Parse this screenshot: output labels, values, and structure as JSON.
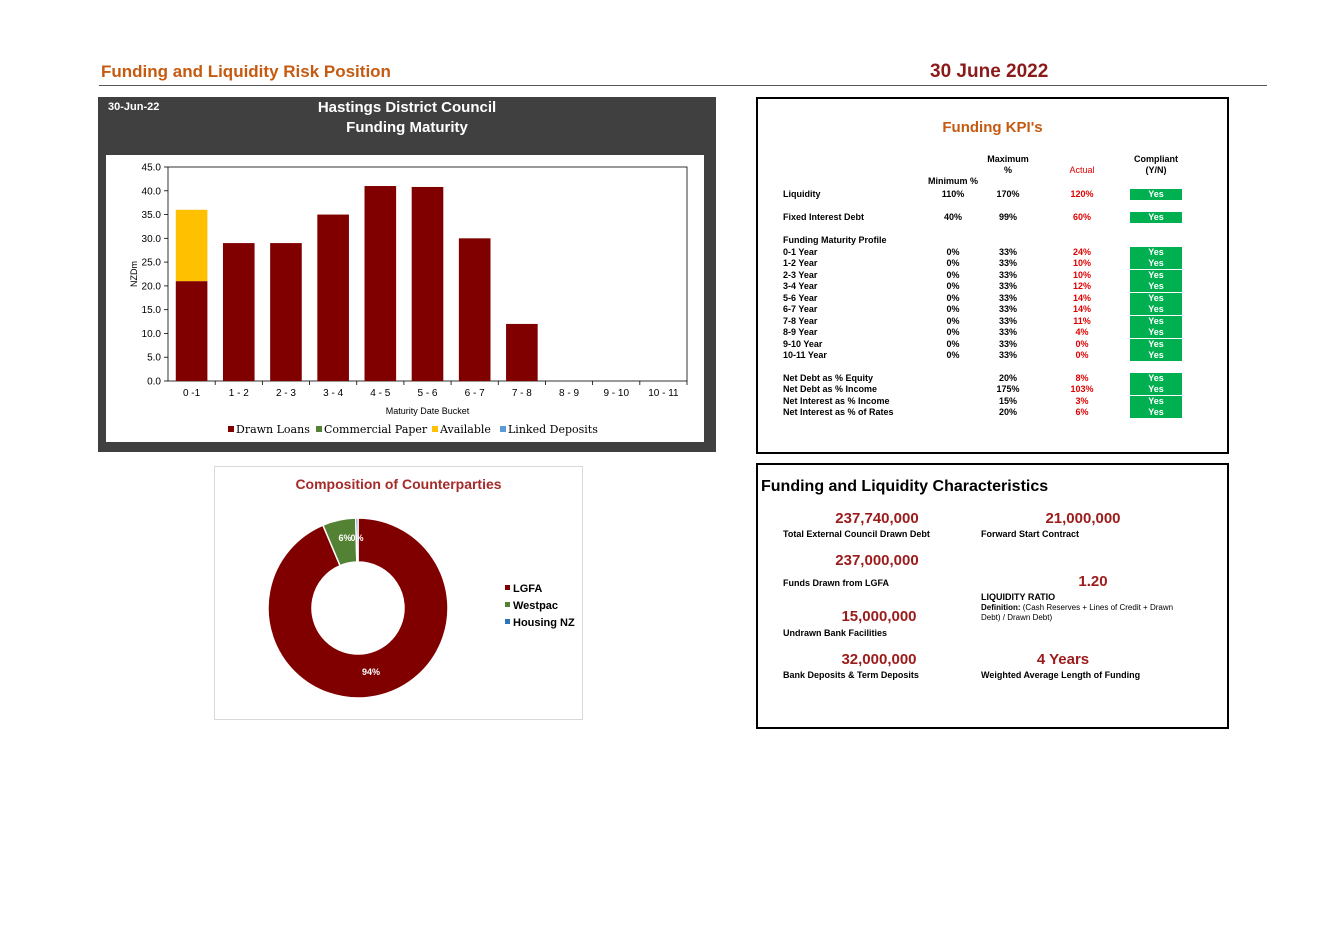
{
  "header": {
    "title": "Funding and Liquidity Risk Position",
    "date": "30 June 2022"
  },
  "bar_panel": {
    "date": "30-Jun-22",
    "title_line1": "Hastings District Council",
    "title_line2": "Funding Maturity"
  },
  "chart_data": [
    {
      "type": "bar",
      "stacked": true,
      "xlabel": "Maturity Date Bucket",
      "ylabel": "NZDm",
      "ylim": [
        0,
        45
      ],
      "yticks": [
        "0.0",
        "5.0",
        "10.0",
        "15.0",
        "20.0",
        "25.0",
        "30.0",
        "35.0",
        "40.0",
        "45.0"
      ],
      "categories": [
        "0 -1",
        "1 - 2",
        "2 - 3",
        "3 - 4",
        "4 - 5",
        "5 - 6",
        "6 - 7",
        "7 - 8",
        "8 - 9",
        "9 - 10",
        "10 - 11"
      ],
      "series": [
        {
          "name": "Drawn Loans",
          "color": "#800000",
          "values": [
            21,
            29,
            29,
            35,
            41,
            40.8,
            30,
            12,
            0,
            0,
            0
          ]
        },
        {
          "name": "Commercial Paper",
          "color": "#548235",
          "values": [
            0,
            0,
            0,
            0,
            0,
            0,
            0,
            0,
            0,
            0,
            0
          ]
        },
        {
          "name": "Available",
          "color": "#ffc000",
          "values": [
            15,
            0,
            0,
            0,
            0,
            0,
            0,
            0,
            0,
            0,
            0
          ]
        },
        {
          "name": "Linked Deposits",
          "color": "#5b9bd5",
          "values": [
            0,
            0,
            0,
            0,
            0,
            0,
            0,
            0,
            0,
            0,
            0
          ]
        }
      ],
      "legend": "bottom",
      "grid": false
    },
    {
      "type": "pie",
      "donut": true,
      "title": "Composition of Counterparties",
      "labels": [
        "LGFA",
        "Westpac",
        "Housing NZ"
      ],
      "values": [
        94,
        6,
        0.4
      ],
      "data_labels": [
        "94%",
        "6%",
        "0%"
      ],
      "colors": [
        "#800000",
        "#548235",
        "#2e75b6"
      ],
      "legend": "right"
    }
  ],
  "kpi": {
    "title": "Funding KPI's",
    "headers": {
      "min": "Minimum %",
      "max_line1": "Maximum",
      "max_line2": "%",
      "actual": "Actual",
      "comp_line1": "Compliant",
      "comp_line2": "(Y/N)"
    },
    "rows": [
      {
        "label": "Liquidity",
        "min": "110%",
        "max": "170%",
        "actual": "120%",
        "compliant": "Yes"
      },
      {
        "label": "Fixed Interest Debt",
        "min": "40%",
        "max": "99%",
        "actual": "60%",
        "compliant": "Yes"
      }
    ],
    "profile_title": "Funding Maturity Profile",
    "profile": [
      {
        "label": "0-1 Year",
        "min": "0%",
        "max": "33%",
        "actual": "24%",
        "compliant": "Yes"
      },
      {
        "label": "1-2 Year",
        "min": "0%",
        "max": "33%",
        "actual": "10%",
        "compliant": "Yes"
      },
      {
        "label": "2-3 Year",
        "min": "0%",
        "max": "33%",
        "actual": "10%",
        "compliant": "Yes"
      },
      {
        "label": "3-4 Year",
        "min": "0%",
        "max": "33%",
        "actual": "12%",
        "compliant": "Yes"
      },
      {
        "label": "5-6 Year",
        "min": "0%",
        "max": "33%",
        "actual": "14%",
        "compliant": "Yes"
      },
      {
        "label": "6-7 Year",
        "min": "0%",
        "max": "33%",
        "actual": "14%",
        "compliant": "Yes"
      },
      {
        "label": "7-8 Year",
        "min": "0%",
        "max": "33%",
        "actual": "11%",
        "compliant": "Yes"
      },
      {
        "label": "8-9 Year",
        "min": "0%",
        "max": "33%",
        "actual": "4%",
        "compliant": "Yes"
      },
      {
        "label": "9-10 Year",
        "min": "0%",
        "max": "33%",
        "actual": "0%",
        "compliant": "Yes"
      },
      {
        "label": "10-11 Year",
        "min": "0%",
        "max": "33%",
        "actual": "0%",
        "compliant": "Yes"
      }
    ],
    "debt": [
      {
        "label": "Net Debt as % Equity",
        "max": "20%",
        "actual": "8%",
        "compliant": "Yes"
      },
      {
        "label": "Net Debt as % Income",
        "max": "175%",
        "actual": "103%",
        "compliant": "Yes"
      },
      {
        "label": "Net Interest as % Income",
        "max": "15%",
        "actual": "3%",
        "compliant": "Yes"
      },
      {
        "label": "Net Interest as % of Rates",
        "max": "20%",
        "actual": "6%",
        "compliant": "Yes"
      }
    ]
  },
  "characteristics": {
    "title": "Funding and Liquidity Characteristics",
    "total_debt": {
      "value": "237,740,000",
      "label": "Total External Council Drawn Debt"
    },
    "lgfa": {
      "value": "237,000,000",
      "label": "Funds Drawn from LGFA"
    },
    "undrawn": {
      "value": "15,000,000",
      "label": "Undrawn Bank Facilities"
    },
    "deposits": {
      "value": "32,000,000",
      "label": "Bank Deposits & Term Deposits"
    },
    "forward": {
      "value": "21,000,000",
      "label": "Forward Start Contract"
    },
    "liquidity": {
      "value": "1.20",
      "label": "LIQUIDITY RATIO",
      "def_label": "Definition:",
      "def_text": " (Cash Reserves + Lines of Credit + Drawn Debt) / Drawn Debt)"
    },
    "walf": {
      "value": "4 Years",
      "label": "Weighted Average Length of Funding"
    }
  }
}
